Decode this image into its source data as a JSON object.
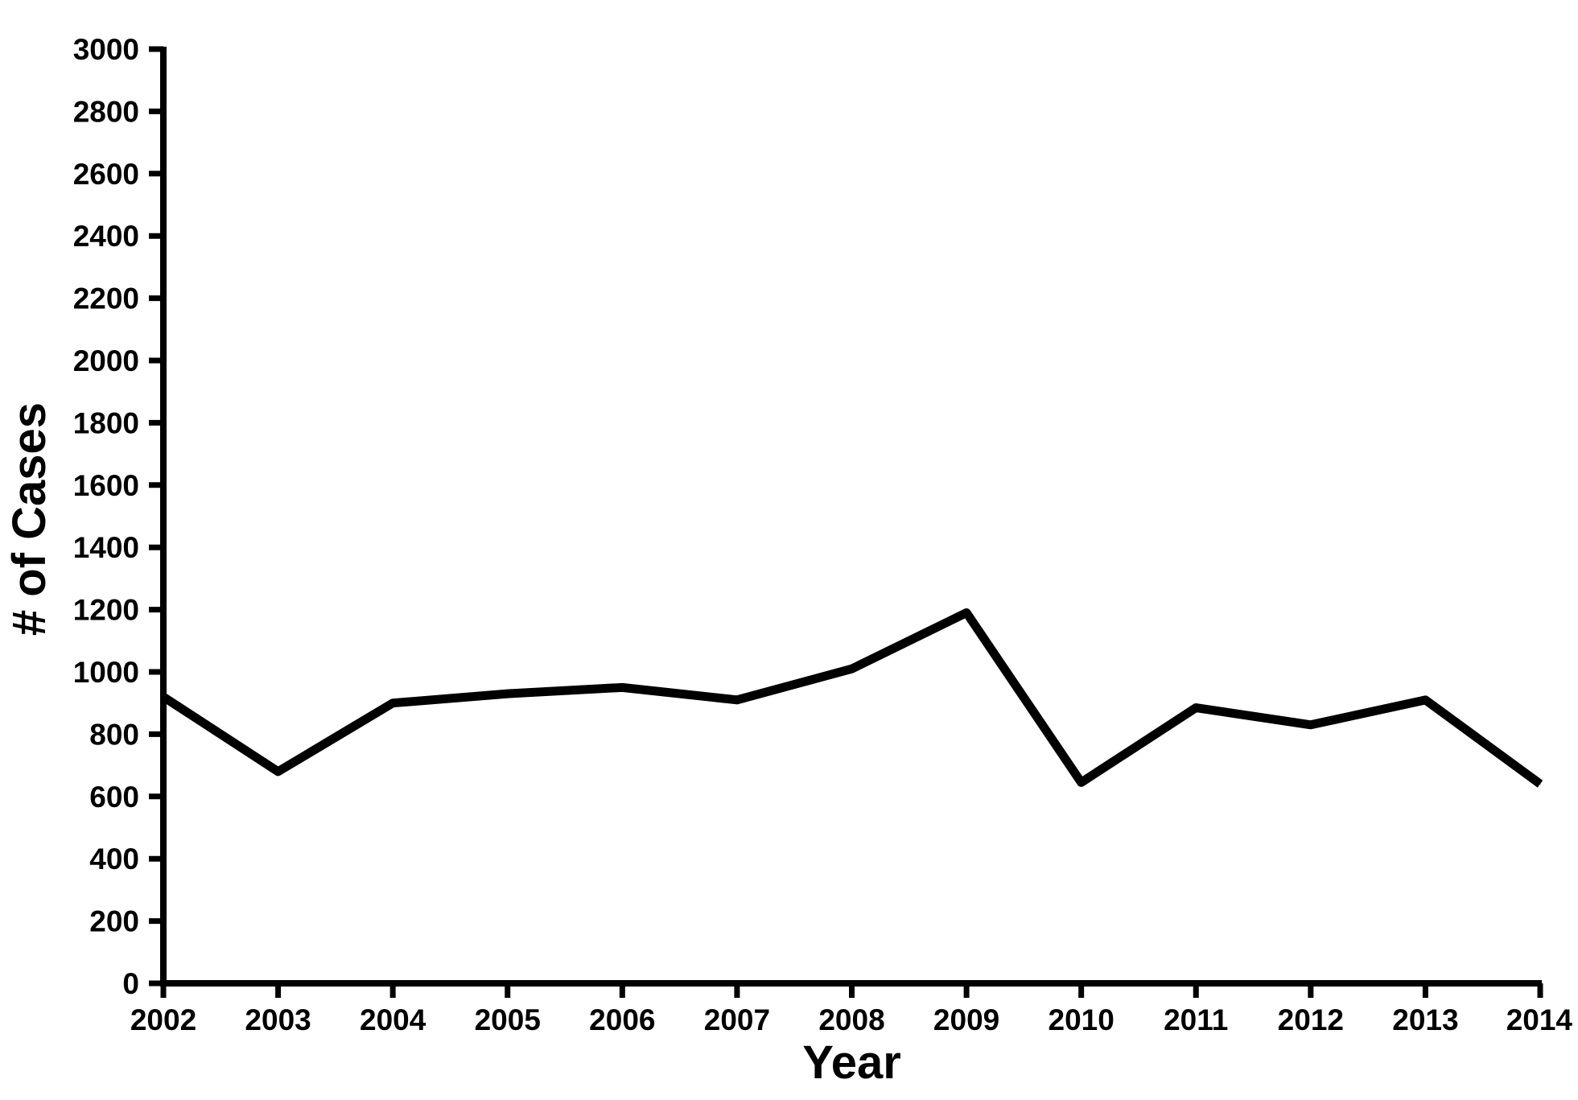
{
  "chart_data": {
    "type": "line",
    "title": "",
    "xlabel": "Year",
    "ylabel": "# of Cases",
    "x": [
      "2002",
      "2003",
      "2004",
      "2005",
      "2006",
      "2007",
      "2008",
      "2009",
      "2010",
      "2011",
      "2012",
      "2013",
      "2014"
    ],
    "series": [
      {
        "values": [
          920,
          680,
          900,
          930,
          950,
          910,
          1010,
          1190,
          645,
          885,
          830,
          910,
          640
        ]
      }
    ],
    "y_ticks": [
      "0",
      "200",
      "400",
      "600",
      "800",
      "1000",
      "1200",
      "1400",
      "1600",
      "1800",
      "2000",
      "2200",
      "2400",
      "2600",
      "2800",
      "3000"
    ],
    "ylim": [
      0,
      3000
    ],
    "grid": false,
    "legend": "none",
    "line_color": "#000000"
  }
}
